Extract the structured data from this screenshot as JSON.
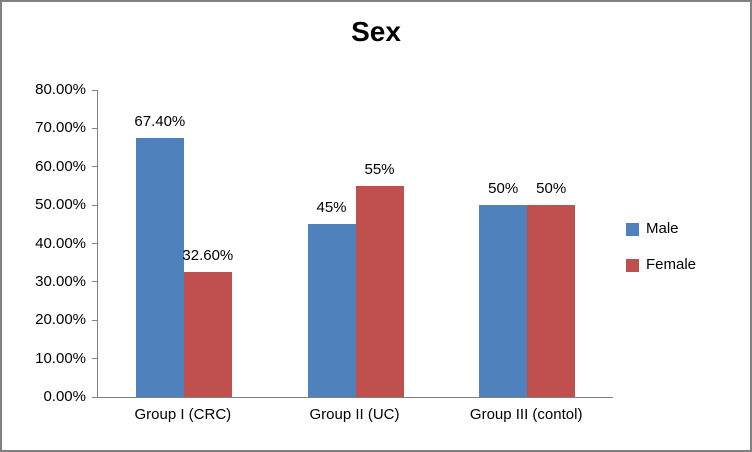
{
  "chart_data": {
    "type": "bar",
    "title": "Sex",
    "categories": [
      "Group I (CRC)",
      "Group II (UC)",
      "Group III (contol)"
    ],
    "series": [
      {
        "name": "Male",
        "color": "#4F81BD",
        "values": [
          67.4,
          45,
          50
        ],
        "labels": [
          "67.40%",
          "45%",
          "50%"
        ]
      },
      {
        "name": "Female",
        "color": "#C0504D",
        "values": [
          32.6,
          55,
          50
        ],
        "labels": [
          "32.60%",
          "55%",
          "50%"
        ]
      }
    ],
    "xlabel": "",
    "ylabel": "",
    "ylim": [
      0,
      80
    ],
    "ytick_labels": [
      "0.00%",
      "10.00%",
      "20.00%",
      "30.00%",
      "40.00%",
      "50.00%",
      "60.00%",
      "70.00%",
      "80.00%"
    ],
    "grid": false,
    "legend_position": "right",
    "axis_color": "#808080",
    "frame_color": "#808080"
  }
}
